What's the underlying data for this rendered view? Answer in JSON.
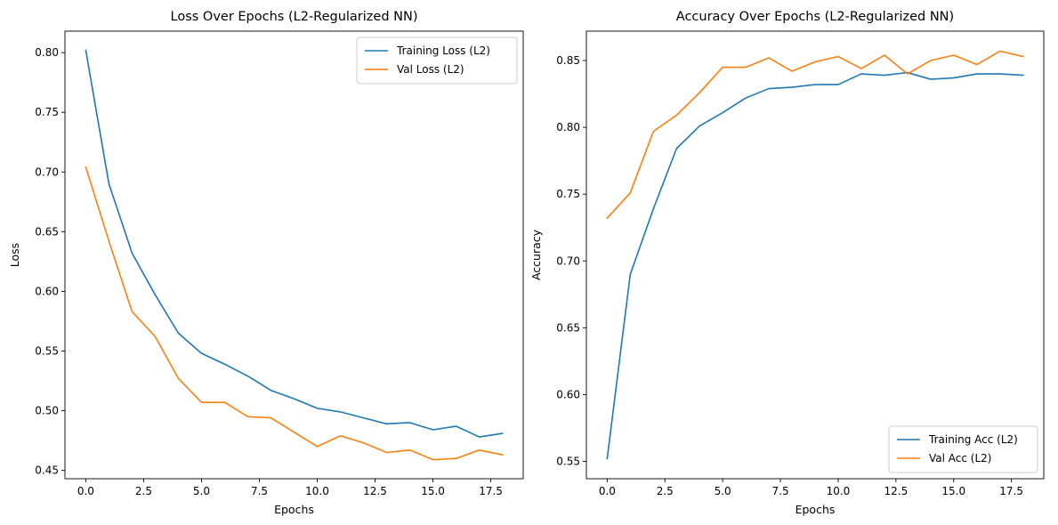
{
  "chart_data": [
    {
      "type": "line",
      "title": "Loss Over Epochs (L2-Regularized NN)",
      "xlabel": "Epochs",
      "ylabel": "Loss",
      "xlim": [
        -0.9,
        18.9
      ],
      "ylim": [
        0.443,
        0.818
      ],
      "xticks": [
        0.0,
        2.5,
        5.0,
        7.5,
        10.0,
        12.5,
        15.0,
        17.5
      ],
      "xtick_labels": [
        "0.0",
        "2.5",
        "5.0",
        "7.5",
        "10.0",
        "12.5",
        "15.0",
        "17.5"
      ],
      "yticks": [
        0.45,
        0.5,
        0.55,
        0.6,
        0.65,
        0.7,
        0.75,
        0.8
      ],
      "ytick_labels": [
        "0.45",
        "0.50",
        "0.55",
        "0.60",
        "0.65",
        "0.70",
        "0.75",
        "0.80"
      ],
      "grid": false,
      "legend_position": "top-right",
      "x": [
        0,
        1,
        2,
        3,
        4,
        5,
        6,
        7,
        8,
        9,
        10,
        11,
        12,
        13,
        14,
        15,
        16,
        17,
        18
      ],
      "series": [
        {
          "name": "Training Loss (L2)",
          "color": "#1f77b4",
          "values": [
            0.802,
            0.69,
            0.632,
            0.597,
            0.565,
            0.548,
            0.539,
            0.529,
            0.517,
            0.51,
            0.502,
            0.499,
            0.494,
            0.489,
            0.49,
            0.484,
            0.487,
            0.478,
            0.481
          ]
        },
        {
          "name": "Val Loss (L2)",
          "color": "#ff7f0e",
          "values": [
            0.704,
            0.642,
            0.583,
            0.562,
            0.527,
            0.507,
            0.507,
            0.495,
            0.494,
            0.482,
            0.47,
            0.479,
            0.473,
            0.465,
            0.467,
            0.459,
            0.46,
            0.467,
            0.463
          ]
        }
      ]
    },
    {
      "type": "line",
      "title": "Accuracy Over Epochs (L2-Regularized NN)",
      "xlabel": "Epochs",
      "ylabel": "Accuracy",
      "xlim": [
        -0.9,
        18.9
      ],
      "ylim": [
        0.537,
        0.872
      ],
      "xticks": [
        0.0,
        2.5,
        5.0,
        7.5,
        10.0,
        12.5,
        15.0,
        17.5
      ],
      "xtick_labels": [
        "0.0",
        "2.5",
        "5.0",
        "7.5",
        "10.0",
        "12.5",
        "15.0",
        "17.5"
      ],
      "yticks": [
        0.55,
        0.6,
        0.65,
        0.7,
        0.75,
        0.8,
        0.85
      ],
      "ytick_labels": [
        "0.55",
        "0.60",
        "0.65",
        "0.70",
        "0.75",
        "0.80",
        "0.85"
      ],
      "grid": false,
      "legend_position": "bottom-right",
      "x": [
        0,
        1,
        2,
        3,
        4,
        5,
        6,
        7,
        8,
        9,
        10,
        11,
        12,
        13,
        14,
        15,
        16,
        17,
        18
      ],
      "series": [
        {
          "name": "Training Acc (L2)",
          "color": "#1f77b4",
          "values": [
            0.552,
            0.69,
            0.739,
            0.784,
            0.801,
            0.811,
            0.822,
            0.829,
            0.83,
            0.832,
            0.832,
            0.84,
            0.839,
            0.841,
            0.836,
            0.837,
            0.84,
            0.84,
            0.839
          ]
        },
        {
          "name": "Val Acc (L2)",
          "color": "#ff7f0e",
          "values": [
            0.732,
            0.751,
            0.797,
            0.809,
            0.826,
            0.845,
            0.845,
            0.852,
            0.842,
            0.849,
            0.853,
            0.844,
            0.854,
            0.84,
            0.85,
            0.854,
            0.847,
            0.857,
            0.853
          ]
        }
      ]
    }
  ]
}
